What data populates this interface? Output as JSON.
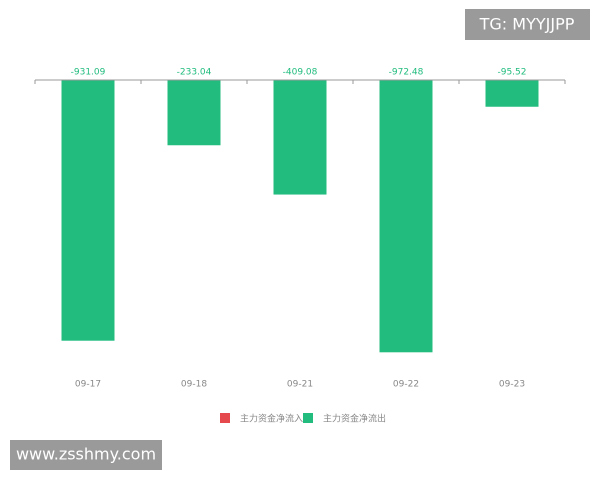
{
  "chart_data": {
    "type": "bar",
    "categories": [
      "09-17",
      "09-18",
      "09-21",
      "09-22",
      "09-23"
    ],
    "series": [
      {
        "name": "主力资金净流入",
        "color": "#e5484d",
        "values": [
          null,
          null,
          null,
          null,
          null
        ]
      },
      {
        "name": "主力资金净流出",
        "color": "#21bc7e",
        "values": [
          -931.09,
          -233.04,
          -409.08,
          -972.48,
          -95.52
        ]
      }
    ],
    "ylim": [
      -1000,
      0
    ]
  },
  "watermarks": [
    "TG: MYYJJPP",
    "www.zsshmy.com"
  ]
}
